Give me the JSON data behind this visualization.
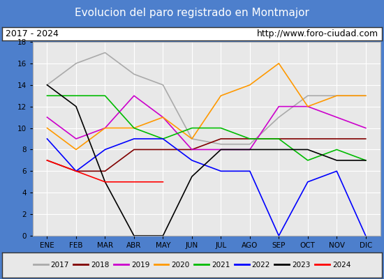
{
  "title": "Evolucion del paro registrado en Montmajor",
  "subtitle_left": "2017 - 2024",
  "subtitle_right": "http://www.foro-ciudad.com",
  "months": [
    "ENE",
    "FEB",
    "MAR",
    "ABR",
    "MAY",
    "JUN",
    "JUL",
    "AGO",
    "SEP",
    "OCT",
    "NOV",
    "DIC"
  ],
  "ylim": [
    0,
    18
  ],
  "yticks": [
    0,
    2,
    4,
    6,
    8,
    10,
    12,
    14,
    16,
    18
  ],
  "series": {
    "2017": {
      "color": "#aaaaaa",
      "values": [
        14,
        16,
        17,
        15,
        14,
        9,
        8.5,
        8.5,
        11,
        13,
        13,
        13
      ]
    },
    "2018": {
      "color": "#800000",
      "values": [
        7,
        6,
        6,
        8,
        8,
        8,
        9,
        9,
        9,
        9,
        9,
        9
      ]
    },
    "2019": {
      "color": "#cc00cc",
      "values": [
        11,
        9,
        10,
        13,
        11,
        8,
        8,
        8,
        12,
        12,
        11,
        10
      ]
    },
    "2020": {
      "color": "#ff9900",
      "values": [
        10,
        8,
        10,
        10,
        11,
        9,
        13,
        14,
        16,
        12,
        13,
        13
      ]
    },
    "2021": {
      "color": "#00bb00",
      "values": [
        13,
        13,
        13,
        10,
        9,
        10,
        10,
        9,
        9,
        7,
        8,
        7
      ]
    },
    "2022": {
      "color": "#0000ff",
      "values": [
        9,
        6,
        8,
        9,
        9,
        7,
        6,
        6,
        0,
        5,
        6,
        0
      ]
    },
    "2023": {
      "color": "#000000",
      "values": [
        14,
        12,
        5,
        0,
        0,
        5.5,
        8,
        8,
        8,
        8,
        7,
        7
      ]
    },
    "2024": {
      "color": "#ff0000",
      "values": [
        7,
        6,
        5,
        5,
        5,
        null,
        null,
        null,
        null,
        null,
        null,
        null
      ]
    }
  },
  "title_bg": "#4d7fcc",
  "title_color": "#ffffff",
  "title_fontsize": 11,
  "subtitle_bg": "#ffffff",
  "subtitle_border": "#333333",
  "plot_bg": "#e8e8e8",
  "plot_border": "#aaaaaa",
  "grid_color": "#ffffff",
  "legend_bg": "#e8e8e8",
  "legend_border": "#333333",
  "outer_bg": "#4d7fcc"
}
